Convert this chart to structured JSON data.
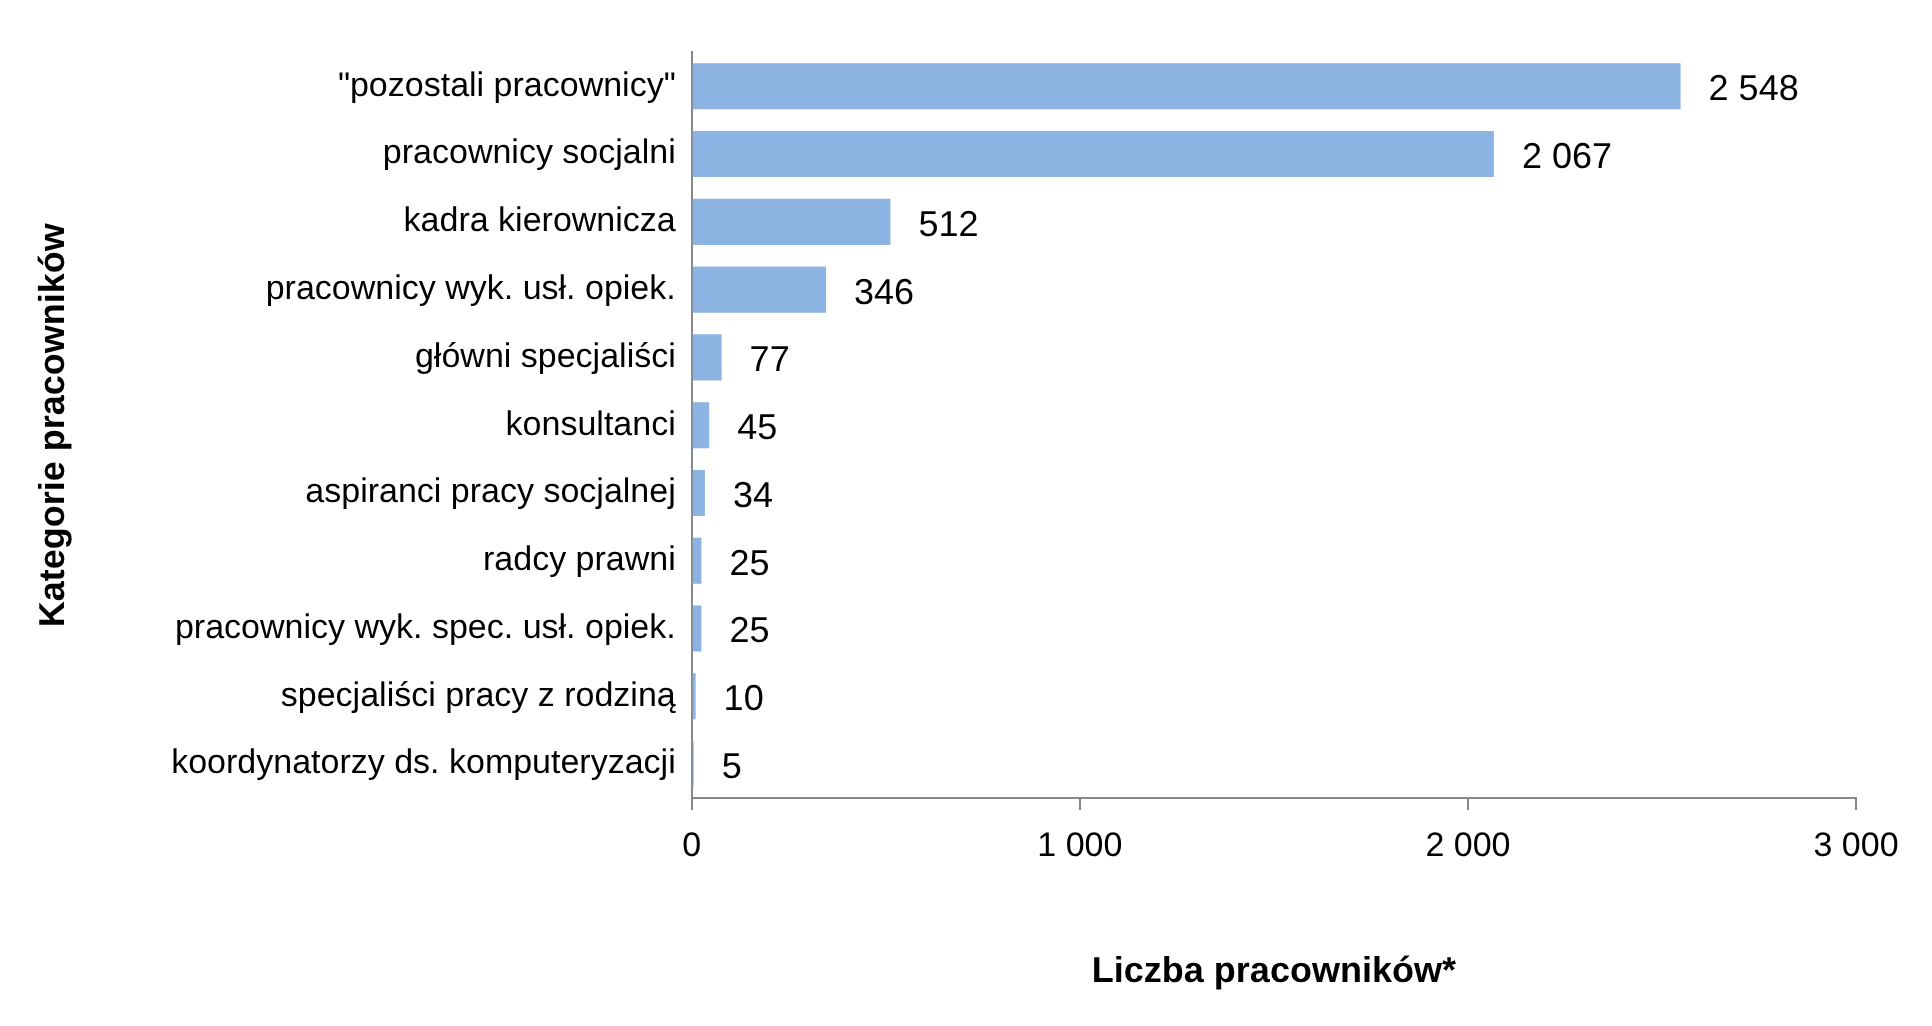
{
  "chart_data": {
    "type": "bar",
    "orientation": "horizontal",
    "xlabel": "Liczba pracowników*",
    "ylabel": "Kategorie pracowników",
    "categories": [
      "\"pozostali pracownicy\"",
      "pracownicy socjalni",
      "kadra kierownicza",
      "pracownicy wyk. usł. opiek.",
      "główni specjaliści",
      "konsultanci",
      "aspiranci pracy socjalnej",
      "radcy prawni",
      "pracownicy wyk. spec. usł. opiek.",
      "specjaliści pracy z rodziną",
      "koordynatorzy ds. komputeryzacji"
    ],
    "values": [
      2548,
      2067,
      512,
      346,
      77,
      45,
      34,
      25,
      25,
      10,
      5
    ],
    "value_labels": [
      "2 548",
      "2 067",
      "512",
      "346",
      "77",
      "45",
      "34",
      "25",
      "25",
      "10",
      "5"
    ],
    "color": "#8db3e2",
    "xlim": [
      0,
      3000
    ],
    "xticks": [
      {
        "value": 0,
        "label": "0"
      },
      {
        "value": 1000,
        "label": "1 000"
      },
      {
        "value": 2000,
        "label": "2 000"
      },
      {
        "value": 3000,
        "label": "3 000"
      }
    ],
    "grid": false,
    "legend": false
  }
}
